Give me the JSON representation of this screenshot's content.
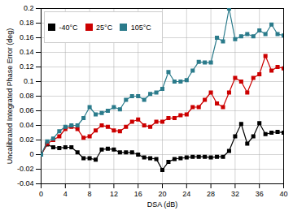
{
  "chart_data": {
    "type": "line",
    "xlabel": "DSA (dB)",
    "ylabel": "Uncalibrated Integrated Phase Error (deg)",
    "x": [
      0,
      1,
      2,
      3,
      4,
      5,
      6,
      7,
      8,
      9,
      10,
      11,
      12,
      13,
      14,
      15,
      16,
      17,
      18,
      19,
      20,
      21,
      22,
      23,
      24,
      25,
      26,
      27,
      28,
      29,
      30,
      31,
      32,
      33,
      34,
      35,
      36,
      37,
      38,
      39,
      40
    ],
    "series": [
      {
        "name": "-40°C",
        "color": "#000000",
        "marker": "square",
        "values": [
          0.0,
          0.014,
          0.01,
          0.009,
          0.01,
          0.01,
          0.003,
          -0.005,
          -0.005,
          -0.007,
          0.007,
          0.008,
          0.007,
          0.003,
          0.003,
          0.003,
          0.0,
          -0.004,
          -0.005,
          -0.006,
          -0.021,
          -0.01,
          -0.006,
          -0.005,
          -0.004,
          -0.003,
          -0.003,
          -0.003,
          -0.004,
          -0.003,
          -0.003,
          0.005,
          0.025,
          0.042,
          0.015,
          0.025,
          0.043,
          0.028,
          0.03,
          0.031,
          0.03
        ]
      },
      {
        "name": "25°C",
        "color": "#cc0000",
        "marker": "square",
        "values": [
          0.0,
          0.015,
          0.02,
          0.025,
          0.035,
          0.038,
          0.035,
          0.023,
          0.025,
          0.033,
          0.04,
          0.038,
          0.033,
          0.032,
          0.038,
          0.045,
          0.048,
          0.04,
          0.038,
          0.045,
          0.045,
          0.05,
          0.05,
          0.054,
          0.055,
          0.065,
          0.065,
          0.075,
          0.085,
          0.07,
          0.065,
          0.085,
          0.105,
          0.1,
          0.085,
          0.105,
          0.11,
          0.135,
          0.115,
          0.12,
          0.118
        ]
      },
      {
        "name": "105°C",
        "color": "#2b7b8b",
        "marker": "square",
        "values": [
          0.0,
          0.018,
          0.022,
          0.032,
          0.038,
          0.04,
          0.04,
          0.05,
          0.065,
          0.055,
          0.057,
          0.06,
          0.065,
          0.062,
          0.075,
          0.08,
          0.08,
          0.075,
          0.083,
          0.085,
          0.09,
          0.113,
          0.1,
          0.1,
          0.102,
          0.115,
          0.127,
          0.126,
          0.126,
          0.16,
          0.155,
          0.2,
          0.158,
          0.162,
          0.165,
          0.162,
          0.17,
          0.165,
          0.178,
          0.165,
          0.163
        ]
      }
    ],
    "xlim": [
      0,
      40
    ],
    "ylim": [
      -0.04,
      0.2
    ],
    "xticks": [
      0,
      4,
      8,
      12,
      16,
      20,
      24,
      28,
      32,
      36,
      40
    ],
    "yticks": [
      -0.04,
      -0.02,
      0,
      0.02,
      0.04,
      0.06,
      0.08,
      0.1,
      0.12,
      0.14,
      0.16,
      0.18,
      0.2
    ],
    "grid": true,
    "legend": "upper left"
  }
}
